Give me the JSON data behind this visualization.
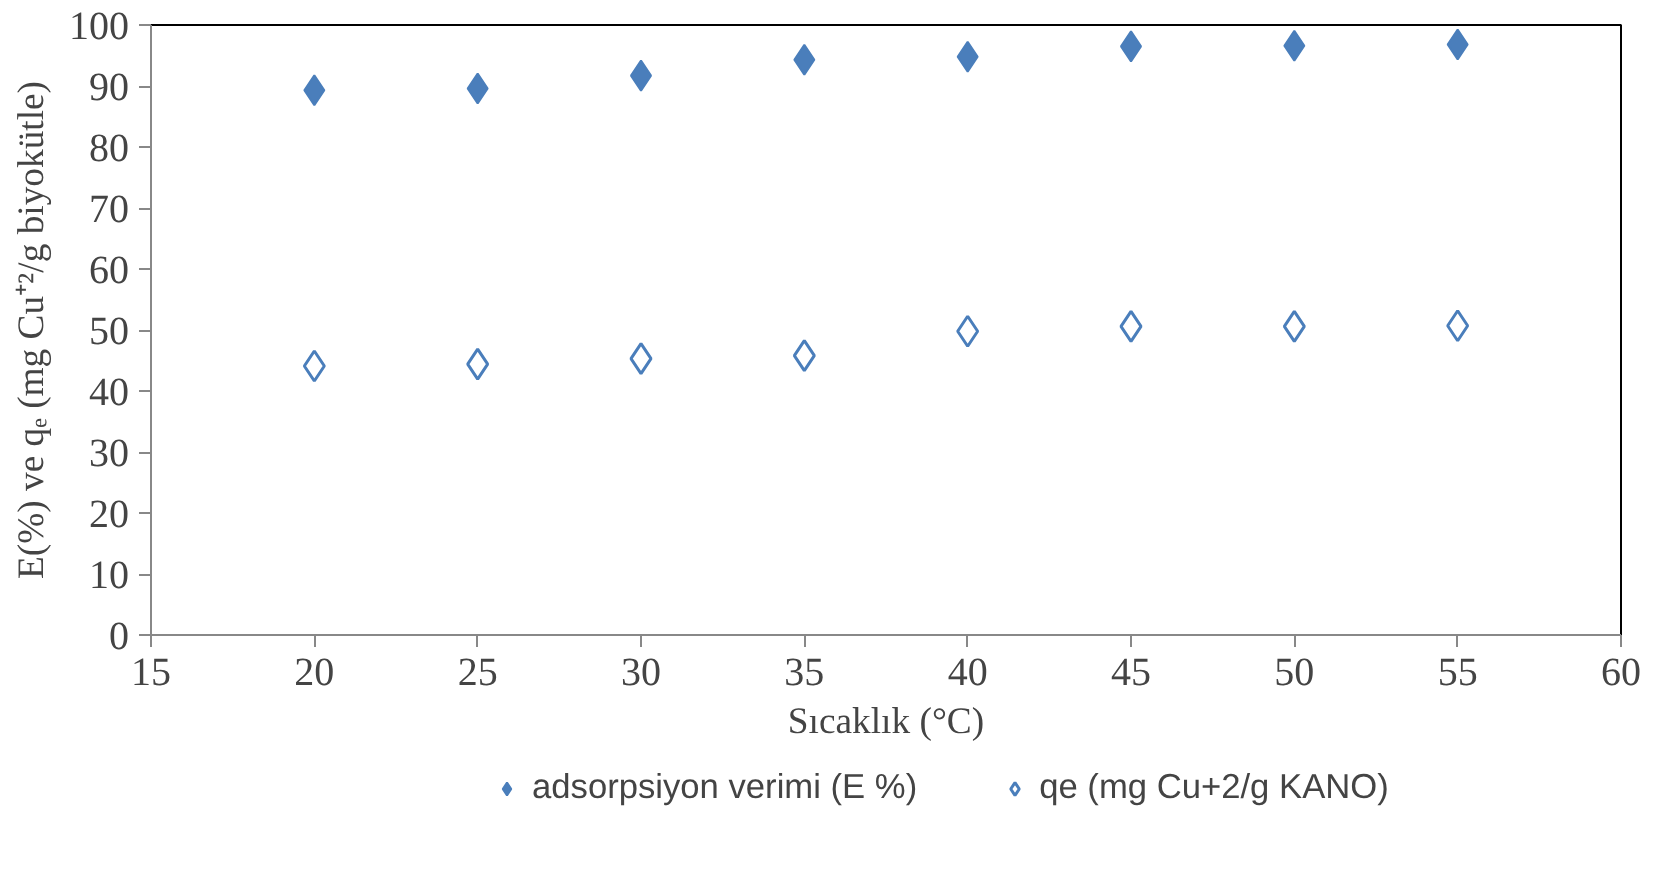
{
  "chart_data": {
    "type": "scatter",
    "xlabel": "Sıcaklık (°C)",
    "ylabel": "E(%) ve qₑ (mg Cu⁺²/g biyokütle)",
    "x": [
      20,
      25,
      30,
      35,
      40,
      45,
      50,
      55
    ],
    "series": [
      {
        "name": "adsorpsiyon verimi (E %)",
        "color": "#4a7ebb",
        "marker": "diamond",
        "values": [
          89.3,
          89.6,
          91.7,
          94.3,
          94.8,
          96.5,
          96.6,
          96.8
        ]
      },
      {
        "name": "qe (mg Cu+2/g KANO)",
        "color": "#4a7ebb",
        "marker": "diamond_open",
        "values": [
          44.1,
          44.4,
          45.3,
          45.8,
          49.8,
          50.6,
          50.6,
          50.7
        ]
      }
    ],
    "xlim": [
      15,
      60
    ],
    "xticks": [
      15,
      20,
      25,
      30,
      35,
      40,
      45,
      50,
      55,
      60
    ],
    "ylim": [
      0,
      100
    ],
    "yticks": [
      0,
      10,
      20,
      30,
      40,
      50,
      60,
      70,
      80,
      90,
      100
    ],
    "grid": false,
    "legend": "bottom"
  }
}
